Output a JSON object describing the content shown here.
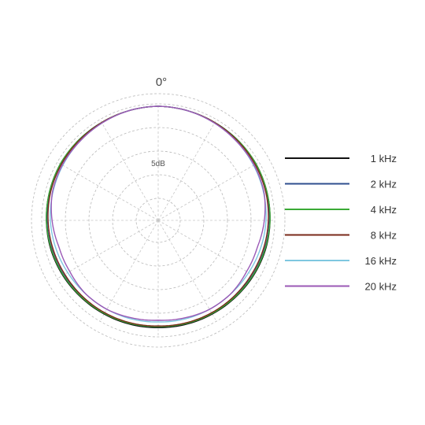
{
  "chart_data": {
    "type": "polar",
    "angle_labels": [
      "0°"
    ],
    "radial_labels": [
      "5dB"
    ],
    "legend_position": "right",
    "grid": true,
    "series": [
      {
        "name": "1 kHz",
        "color": "#111111",
        "angles": [
          0,
          15,
          30,
          45,
          60,
          75,
          90,
          105,
          120,
          135,
          150,
          165,
          180
        ],
        "values": [
          1.0,
          0.995,
          0.99,
          0.99,
          0.99,
          0.985,
          0.98,
          0.975,
          0.965,
          0.955,
          0.948,
          0.943,
          0.94
        ]
      },
      {
        "name": "2 kHz",
        "color": "#2f4f8f",
        "angles": [
          0,
          15,
          30,
          45,
          60,
          75,
          90,
          105,
          120,
          135,
          150,
          165,
          180
        ],
        "values": [
          1.0,
          0.995,
          0.99,
          0.99,
          0.985,
          0.98,
          0.975,
          0.965,
          0.955,
          0.945,
          0.94,
          0.935,
          0.93
        ]
      },
      {
        "name": "4 kHz",
        "color": "#3aaa35",
        "angles": [
          0,
          15,
          30,
          45,
          60,
          75,
          90,
          105,
          120,
          135,
          150,
          165,
          180
        ],
        "values": [
          1.0,
          0.995,
          0.99,
          0.99,
          0.99,
          0.985,
          0.98,
          0.97,
          0.96,
          0.95,
          0.942,
          0.936,
          0.93
        ]
      },
      {
        "name": "8 kHz",
        "color": "#7a2a1a",
        "angles": [
          0,
          15,
          30,
          45,
          60,
          75,
          90,
          105,
          120,
          135,
          150,
          165,
          180
        ],
        "values": [
          1.0,
          0.995,
          0.99,
          0.985,
          0.98,
          0.975,
          0.965,
          0.955,
          0.945,
          0.94,
          0.935,
          0.93,
          0.925
        ]
      },
      {
        "name": "16 kHz",
        "color": "#7ec7e0",
        "angles": [
          0,
          15,
          30,
          45,
          60,
          75,
          90,
          105,
          120,
          135,
          150,
          165,
          180
        ],
        "values": [
          1.0,
          0.995,
          0.985,
          0.975,
          0.965,
          0.955,
          0.945,
          0.93,
          0.915,
          0.905,
          0.9,
          0.895,
          0.89
        ]
      },
      {
        "name": "20 kHz",
        "color": "#9b59b6",
        "angles": [
          0,
          15,
          30,
          45,
          60,
          75,
          90,
          105,
          120,
          135,
          150,
          165,
          180
        ],
        "values": [
          1.0,
          0.995,
          0.985,
          0.975,
          0.97,
          0.96,
          0.93,
          0.9,
          0.895,
          0.905,
          0.9,
          0.885,
          0.875
        ]
      }
    ]
  }
}
